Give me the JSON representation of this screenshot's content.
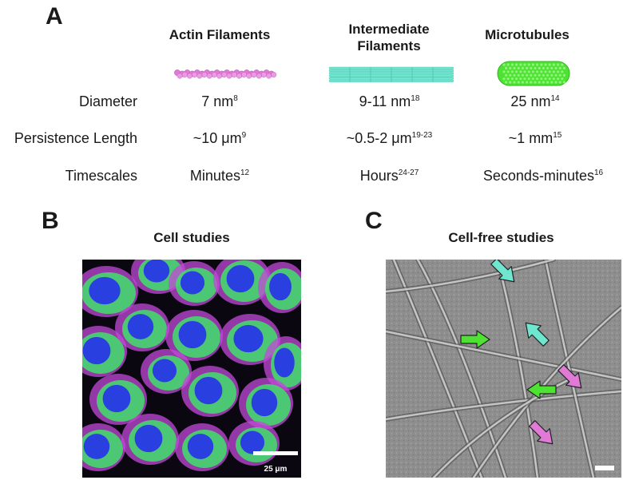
{
  "panel_a": {
    "letter": "A",
    "columns": [
      {
        "title": "Actin Filaments"
      },
      {
        "title_line1": "Intermediate",
        "title_line2": "Filaments"
      },
      {
        "title": "Microtubules"
      }
    ],
    "rows": [
      {
        "label": "Diameter",
        "cells": [
          {
            "value": "7 nm",
            "ref": "8"
          },
          {
            "value": "9-11 nm",
            "ref": "18"
          },
          {
            "value": "25 nm",
            "ref": "14"
          }
        ]
      },
      {
        "label": "Persistence Length",
        "cells": [
          {
            "value": "~10 μm",
            "ref": "9"
          },
          {
            "value": "~0.5-2 μm",
            "ref": "19-23"
          },
          {
            "value": "~1 mm",
            "ref": "15"
          }
        ]
      },
      {
        "label": "Timescales",
        "cells": [
          {
            "value": "Minutes",
            "ref": "12"
          },
          {
            "value": "Hours",
            "ref": "24-27"
          },
          {
            "value": "Seconds-minutes",
            "ref": "16"
          }
        ]
      }
    ],
    "colors": {
      "actin": "#e07ad6",
      "intermediate": "#6fe6cf",
      "microtubule": "#4ee332"
    }
  },
  "panel_b": {
    "letter": "B",
    "title": "Cell studies",
    "scale_bar": "25 μm",
    "colors": {
      "nucleus": "#2a3fe0",
      "membrane": "#c24ad8",
      "cytoplasm": "#3fe06a"
    }
  },
  "panel_c": {
    "letter": "C",
    "title": "Cell-free studies",
    "arrow_colors": {
      "intermediate": "#6fe6cf",
      "microtubule": "#4ee332",
      "actin": "#e07ad6"
    }
  }
}
